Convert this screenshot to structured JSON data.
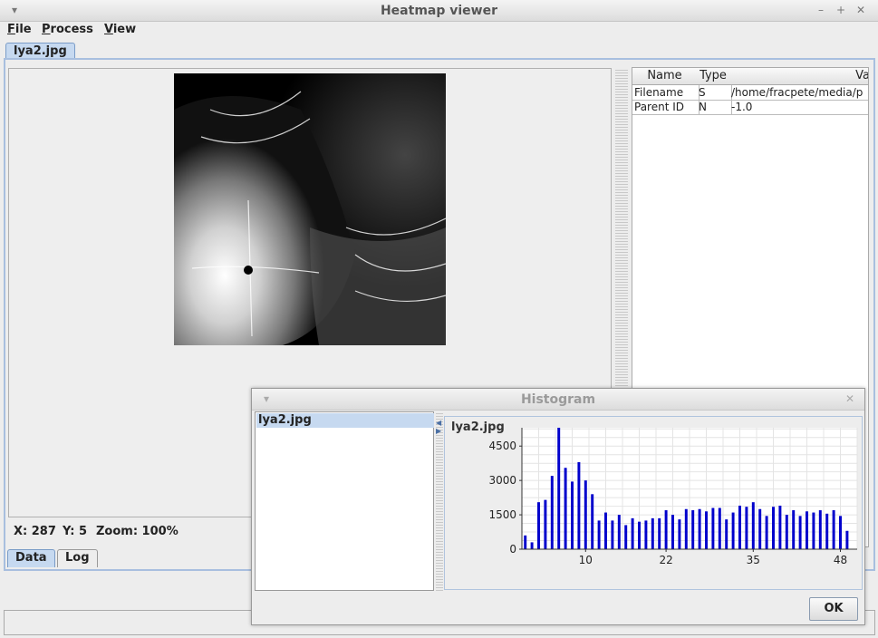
{
  "window": {
    "title": "Heatmap viewer"
  },
  "menu": [
    "File",
    "Process",
    "View"
  ],
  "tabs": {
    "document": "lya2.jpg",
    "bottom": [
      "Data",
      "Log"
    ]
  },
  "metadata_table": {
    "columns": [
      "Name",
      "Type",
      "Va"
    ],
    "rows": [
      [
        "Filename",
        "S",
        "/home/fracpete/media/p"
      ],
      [
        "Parent ID",
        "N",
        "-1.0"
      ]
    ]
  },
  "status": {
    "x_label": "X: 287",
    "y_label": "Y: 5",
    "zoom_label": "Zoom: 100%"
  },
  "histogram_dialog": {
    "title": "Histogram",
    "list_items": [
      "lya2.jpg"
    ],
    "ok_label": "OK"
  },
  "chart_data": {
    "type": "bar",
    "title": "lya2.jpg",
    "xlabel": "",
    "ylabel": "",
    "x_ticks": [
      "10",
      "22",
      "35",
      "48"
    ],
    "y_ticks": [
      "0",
      "1500",
      "3000",
      "4500"
    ],
    "xlim": [
      0,
      50
    ],
    "ylim": [
      0,
      5300
    ],
    "grid": true,
    "bar_color": "#0000cc",
    "x": [
      1,
      2,
      3,
      4,
      5,
      6,
      7,
      8,
      9,
      10,
      11,
      12,
      13,
      14,
      15,
      16,
      17,
      18,
      19,
      20,
      21,
      22,
      23,
      24,
      25,
      26,
      27,
      28,
      29,
      30,
      31,
      32,
      33,
      34,
      35,
      36,
      37,
      38,
      39,
      40,
      41,
      42,
      43,
      44,
      45,
      46,
      47,
      48,
      49,
      50
    ],
    "values": [
      600,
      300,
      2050,
      2150,
      3200,
      5300,
      3550,
      2950,
      3800,
      3000,
      2400,
      1250,
      1600,
      1250,
      1500,
      1050,
      1350,
      1200,
      1250,
      1350,
      1350,
      1700,
      1500,
      1300,
      1750,
      1700,
      1750,
      1650,
      1800,
      1800,
      1300,
      1600,
      1900,
      1850,
      2050,
      1750,
      1450,
      1850,
      1900,
      1500,
      1700,
      1450,
      1650,
      1600,
      1700,
      1550,
      1700,
      1450,
      800,
      0
    ]
  },
  "colors": {
    "tab_active": "#c6d9f0",
    "bar": "#0000cc"
  }
}
